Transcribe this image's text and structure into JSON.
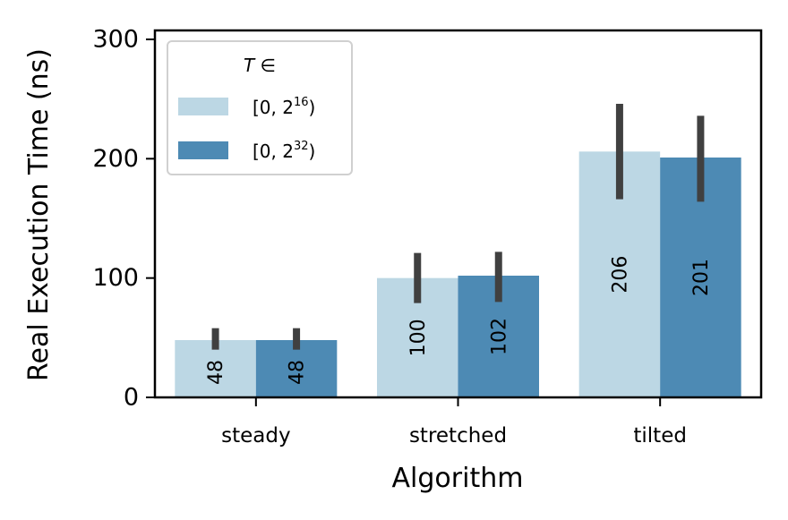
{
  "chart_data": {
    "type": "bar",
    "xlabel": "Algorithm",
    "ylabel": "Real Execution Time (ns)",
    "ylim": [
      0,
      305
    ],
    "yticks": [
      0,
      100,
      200,
      300
    ],
    "grid": false,
    "legend": {
      "placement": "top-left",
      "title": "T ∈",
      "entries": [
        {
          "base": "[0, 2",
          "exp": "16",
          "close": ")"
        },
        {
          "base": "[0, 2",
          "exp": "32",
          "close": ")"
        }
      ]
    },
    "categories": [
      "steady",
      "stretched",
      "tilted"
    ],
    "series": [
      {
        "name": "[0, 2^16)",
        "color": "#bcd7e4",
        "values": [
          48,
          100,
          206
        ],
        "labels": [
          "48",
          "100",
          "206"
        ],
        "error_low": [
          40,
          79,
          166
        ],
        "error_high": [
          58,
          121,
          246
        ]
      },
      {
        "name": "[0, 2^32)",
        "color": "#4d8ab4",
        "values": [
          48,
          102,
          201
        ],
        "labels": [
          "48",
          "102",
          "201"
        ],
        "error_low": [
          40,
          80,
          164
        ],
        "error_high": [
          58,
          122,
          236
        ]
      }
    ],
    "error_bar_color": "#404040"
  }
}
